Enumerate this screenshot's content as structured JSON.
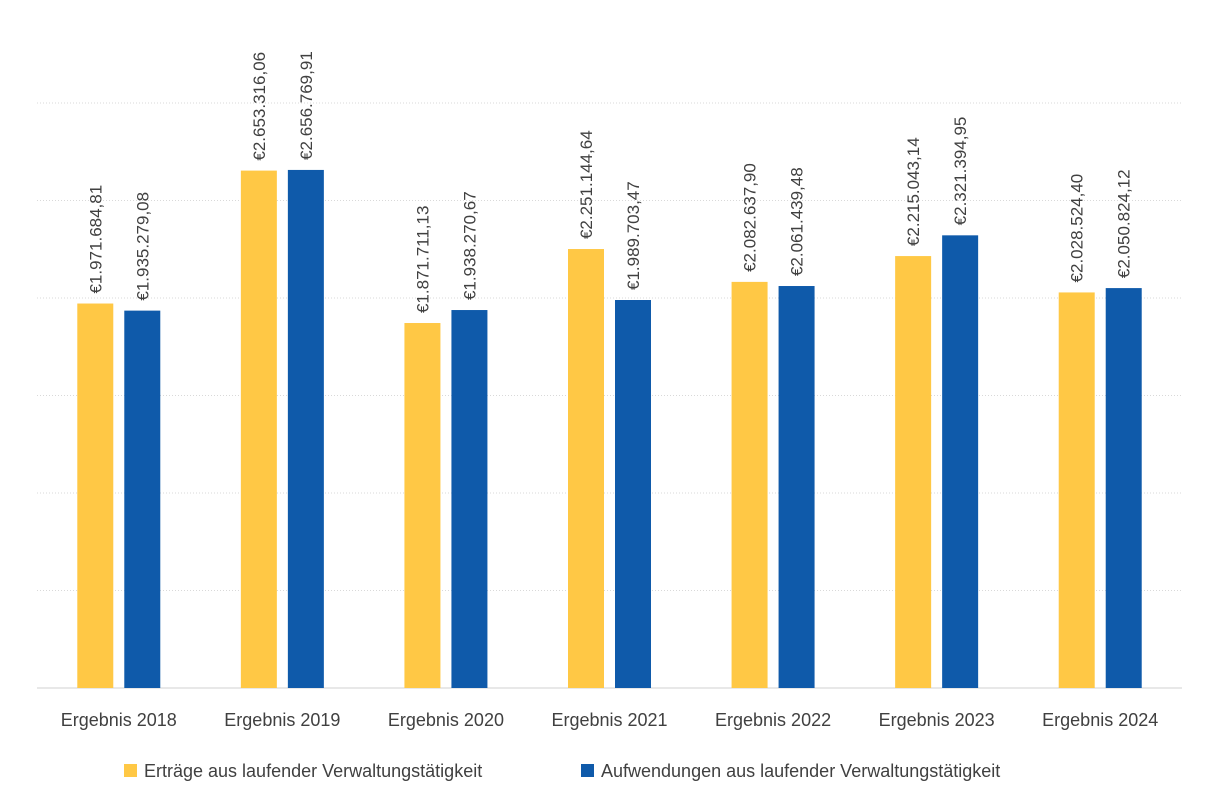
{
  "chart_data": {
    "type": "bar",
    "categories": [
      "Ergebnis 2018",
      "Ergebnis 2019",
      "Ergebnis 2020",
      "Ergebnis 2021",
      "Ergebnis 2022",
      "Ergebnis 2023",
      "Ergebnis 2024"
    ],
    "series": [
      {
        "name": "Erträge aus laufender Verwaltungstätigkeit",
        "color": "#FFC845",
        "values": [
          1971684.81,
          2653316.06,
          1871711.13,
          2251144.64,
          2082637.9,
          2215043.14,
          2028524.4
        ],
        "labels": [
          "€1.971.684,81",
          "€2.653.316,06",
          "€1.871.711,13",
          "€2.251.144,64",
          "€2.082.637,90",
          "€2.215.043,14",
          "€2.028.524,40"
        ]
      },
      {
        "name": "Aufwendungen aus laufender Verwaltungstätigkeit",
        "color": "#0F5AAA",
        "values": [
          1935279.08,
          2656769.91,
          1938270.67,
          1989703.47,
          2061439.48,
          2321394.95,
          2050824.12
        ],
        "labels": [
          "€1.935.279,08",
          "€2.656.769,91",
          "€1.938.270,67",
          "€1.989.703,47",
          "€2.061.439,48",
          "€2.321.394,95",
          "€2.050.824,12"
        ]
      }
    ],
    "title": "",
    "xlabel": "",
    "ylabel": "",
    "ylim": [
      0,
      3000000
    ],
    "y_axis_labels_shown": false,
    "grid": true,
    "legend_position": "bottom"
  }
}
